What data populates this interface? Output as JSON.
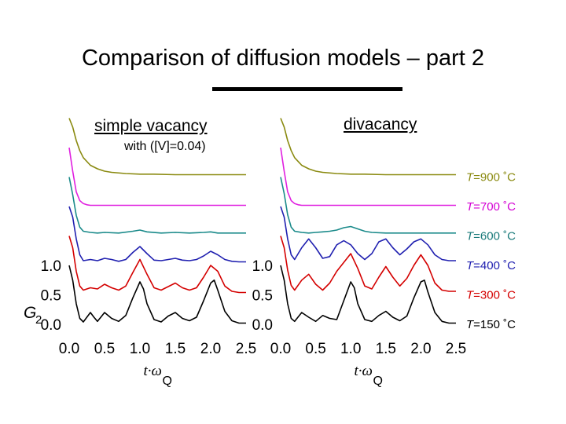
{
  "header": {
    "title": "Comparison of diffusion models – part 2",
    "left_label": "simple vacancy",
    "left_sublabel": "with ([V]=0.04)",
    "right_label": "divacancy"
  },
  "chart_data": [
    {
      "type": "line",
      "panel": "simple vacancy",
      "xlabel_base": "t·ω",
      "xlabel_sub": "Q",
      "ylabel_base": "G",
      "ylabel_sub": "2",
      "xlim": [
        0,
        2.5
      ],
      "ylim": [
        0,
        1.0
      ],
      "x_ticks": [
        "0.0",
        "0.5",
        "1.0",
        "1.5",
        "2.0",
        "2.5"
      ],
      "y_ticks": [
        "0.0",
        "0.5",
        "1.0"
      ],
      "stacked_offset_per_curve": 0.5,
      "series": [
        {
          "temperature": "150",
          "color": "#000000",
          "x": [
            0,
            0.05,
            0.1,
            0.15,
            0.2,
            0.25,
            0.3,
            0.35,
            0.4,
            0.5,
            0.6,
            0.7,
            0.8,
            0.9,
            1.0,
            1.05,
            1.1,
            1.2,
            1.3,
            1.4,
            1.5,
            1.6,
            1.7,
            1.8,
            1.9,
            2.0,
            2.05,
            2.1,
            2.2,
            2.3,
            2.4,
            2.5
          ],
          "y": [
            1.0,
            0.75,
            0.35,
            0.1,
            0.04,
            0.12,
            0.2,
            0.12,
            0.05,
            0.2,
            0.1,
            0.05,
            0.15,
            0.45,
            0.72,
            0.6,
            0.35,
            0.08,
            0.04,
            0.14,
            0.2,
            0.1,
            0.06,
            0.12,
            0.4,
            0.7,
            0.75,
            0.58,
            0.22,
            0.06,
            0.02,
            0.02
          ]
        },
        {
          "temperature": "300",
          "color": "#d40000",
          "x": [
            0,
            0.05,
            0.1,
            0.15,
            0.2,
            0.3,
            0.4,
            0.5,
            0.6,
            0.7,
            0.8,
            0.9,
            1.0,
            1.1,
            1.2,
            1.3,
            1.4,
            1.5,
            1.6,
            1.7,
            1.8,
            1.9,
            2.0,
            2.1,
            2.2,
            2.3,
            2.4,
            2.5
          ],
          "y": [
            1.0,
            0.8,
            0.4,
            0.15,
            0.08,
            0.12,
            0.1,
            0.18,
            0.12,
            0.08,
            0.15,
            0.38,
            0.6,
            0.35,
            0.12,
            0.08,
            0.14,
            0.2,
            0.12,
            0.08,
            0.12,
            0.3,
            0.5,
            0.4,
            0.15,
            0.06,
            0.04,
            0.04
          ]
        },
        {
          "temperature": "400",
          "color": "#2020b0",
          "x": [
            0,
            0.05,
            0.1,
            0.15,
            0.2,
            0.3,
            0.4,
            0.5,
            0.6,
            0.7,
            0.8,
            0.9,
            1.0,
            1.1,
            1.2,
            1.3,
            1.4,
            1.5,
            1.6,
            1.7,
            1.8,
            1.9,
            2.0,
            2.1,
            2.2,
            2.3,
            2.4,
            2.5
          ],
          "y": [
            1.0,
            0.82,
            0.45,
            0.18,
            0.08,
            0.1,
            0.08,
            0.12,
            0.1,
            0.07,
            0.1,
            0.22,
            0.32,
            0.2,
            0.09,
            0.08,
            0.1,
            0.12,
            0.09,
            0.08,
            0.1,
            0.16,
            0.24,
            0.18,
            0.1,
            0.07,
            0.06,
            0.06
          ]
        },
        {
          "temperature": "600",
          "color": "#1a8a8a",
          "x": [
            0,
            0.05,
            0.1,
            0.15,
            0.2,
            0.3,
            0.4,
            0.5,
            0.7,
            0.9,
            1.0,
            1.1,
            1.3,
            1.5,
            1.7,
            1.9,
            2.0,
            2.1,
            2.3,
            2.5
          ],
          "y": [
            1.0,
            0.7,
            0.35,
            0.15,
            0.08,
            0.06,
            0.05,
            0.06,
            0.05,
            0.08,
            0.1,
            0.07,
            0.05,
            0.06,
            0.05,
            0.06,
            0.07,
            0.05,
            0.05,
            0.05
          ]
        },
        {
          "temperature": "700",
          "color": "#e020e0",
          "x": [
            0,
            0.05,
            0.1,
            0.15,
            0.2,
            0.25,
            0.3,
            0.4,
            0.6,
            1.0,
            1.5,
            2.0,
            2.5
          ],
          "y": [
            1.0,
            0.6,
            0.25,
            0.1,
            0.05,
            0.03,
            0.02,
            0.02,
            0.02,
            0.02,
            0.02,
            0.02,
            0.02
          ]
        },
        {
          "temperature": "900",
          "color": "#8a8a10",
          "x": [
            0,
            0.05,
            0.1,
            0.15,
            0.2,
            0.3,
            0.4,
            0.5,
            0.6,
            0.8,
            1.0,
            1.2,
            1.5,
            2.0,
            2.5
          ],
          "y": [
            1.0,
            0.85,
            0.62,
            0.45,
            0.33,
            0.2,
            0.14,
            0.1,
            0.08,
            0.06,
            0.05,
            0.05,
            0.04,
            0.04,
            0.04
          ]
        }
      ]
    },
    {
      "type": "line",
      "panel": "divacancy",
      "xlabel_base": "t·ω",
      "xlabel_sub": "Q",
      "xlim": [
        0,
        2.5
      ],
      "ylim": [
        0,
        1.0
      ],
      "x_ticks": [
        "0.0",
        "0.5",
        "1.0",
        "1.5",
        "2.0",
        "2.5"
      ],
      "y_ticks": [
        "0.0",
        "0.5",
        "1.0"
      ],
      "stacked_offset_per_curve": 0.5,
      "series": [
        {
          "temperature": "150",
          "color": "#000000",
          "x": [
            0,
            0.05,
            0.1,
            0.15,
            0.2,
            0.3,
            0.4,
            0.5,
            0.6,
            0.7,
            0.8,
            0.9,
            1.0,
            1.05,
            1.1,
            1.2,
            1.3,
            1.4,
            1.5,
            1.6,
            1.7,
            1.8,
            1.9,
            2.0,
            2.05,
            2.1,
            2.2,
            2.3,
            2.4,
            2.5
          ],
          "y": [
            1.0,
            0.75,
            0.35,
            0.1,
            0.05,
            0.2,
            0.12,
            0.05,
            0.15,
            0.1,
            0.08,
            0.4,
            0.72,
            0.62,
            0.35,
            0.08,
            0.05,
            0.15,
            0.22,
            0.12,
            0.06,
            0.14,
            0.45,
            0.72,
            0.75,
            0.55,
            0.2,
            0.05,
            0.02,
            0.02
          ]
        },
        {
          "temperature": "300",
          "color": "#d40000",
          "x": [
            0,
            0.05,
            0.1,
            0.15,
            0.2,
            0.3,
            0.4,
            0.5,
            0.6,
            0.7,
            0.8,
            0.9,
            1.0,
            1.1,
            1.2,
            1.3,
            1.4,
            1.5,
            1.6,
            1.7,
            1.8,
            1.9,
            2.0,
            2.1,
            2.2,
            2.3,
            2.4,
            2.5
          ],
          "y": [
            1.0,
            0.8,
            0.42,
            0.16,
            0.08,
            0.25,
            0.35,
            0.18,
            0.08,
            0.2,
            0.4,
            0.55,
            0.7,
            0.45,
            0.15,
            0.1,
            0.3,
            0.48,
            0.3,
            0.15,
            0.28,
            0.5,
            0.68,
            0.5,
            0.2,
            0.08,
            0.06,
            0.06
          ]
        },
        {
          "temperature": "400",
          "color": "#2020b0",
          "x": [
            0,
            0.05,
            0.1,
            0.15,
            0.2,
            0.3,
            0.4,
            0.5,
            0.6,
            0.7,
            0.8,
            0.9,
            1.0,
            1.1,
            1.2,
            1.3,
            1.4,
            1.5,
            1.6,
            1.7,
            1.8,
            1.9,
            2.0,
            2.1,
            2.2,
            2.3,
            2.4,
            2.5
          ],
          "y": [
            1.0,
            0.82,
            0.45,
            0.18,
            0.1,
            0.3,
            0.45,
            0.3,
            0.12,
            0.15,
            0.35,
            0.42,
            0.35,
            0.2,
            0.1,
            0.2,
            0.4,
            0.45,
            0.3,
            0.18,
            0.28,
            0.4,
            0.45,
            0.35,
            0.18,
            0.1,
            0.08,
            0.08
          ]
        },
        {
          "temperature": "600",
          "color": "#1a8a8a",
          "x": [
            0,
            0.05,
            0.1,
            0.15,
            0.2,
            0.3,
            0.4,
            0.5,
            0.6,
            0.7,
            0.8,
            0.9,
            1.0,
            1.1,
            1.2,
            1.3,
            1.5,
            1.7,
            1.9,
            2.1,
            2.3,
            2.5
          ],
          "y": [
            1.0,
            0.72,
            0.36,
            0.15,
            0.08,
            0.06,
            0.05,
            0.06,
            0.07,
            0.08,
            0.1,
            0.14,
            0.16,
            0.12,
            0.08,
            0.06,
            0.05,
            0.05,
            0.05,
            0.05,
            0.05,
            0.05
          ]
        },
        {
          "temperature": "700",
          "color": "#e020e0",
          "x": [
            0,
            0.05,
            0.1,
            0.15,
            0.2,
            0.25,
            0.3,
            0.4,
            0.6,
            1.0,
            1.5,
            2.0,
            2.5
          ],
          "y": [
            1.0,
            0.6,
            0.25,
            0.1,
            0.05,
            0.03,
            0.02,
            0.02,
            0.02,
            0.02,
            0.02,
            0.02,
            0.02
          ]
        },
        {
          "temperature": "900",
          "color": "#8a8a10",
          "x": [
            0,
            0.05,
            0.1,
            0.15,
            0.2,
            0.3,
            0.4,
            0.5,
            0.6,
            0.8,
            1.0,
            1.2,
            1.5,
            2.0,
            2.5
          ],
          "y": [
            1.0,
            0.85,
            0.62,
            0.45,
            0.33,
            0.2,
            0.14,
            0.1,
            0.08,
            0.06,
            0.05,
            0.05,
            0.04,
            0.04,
            0.04
          ]
        }
      ]
    }
  ],
  "temperature_labels": [
    {
      "var": "T",
      "value": "=900",
      "unit": "˚C",
      "color": "#8a8a10"
    },
    {
      "var": "T",
      "value": "=700",
      "unit": "˚C",
      "color": "#d400d4"
    },
    {
      "var": "T",
      "value": "=600",
      "unit": "˚C",
      "color": "#1a7a7a"
    },
    {
      "var": "T",
      "value": "=400",
      "unit": "˚C",
      "color": "#2020b0"
    },
    {
      "var": "T",
      "value": "=300",
      "unit": "˚C",
      "color": "#d40000"
    },
    {
      "var": "T",
      "value": "=150",
      "unit": "˚C",
      "color": "#000000"
    }
  ]
}
